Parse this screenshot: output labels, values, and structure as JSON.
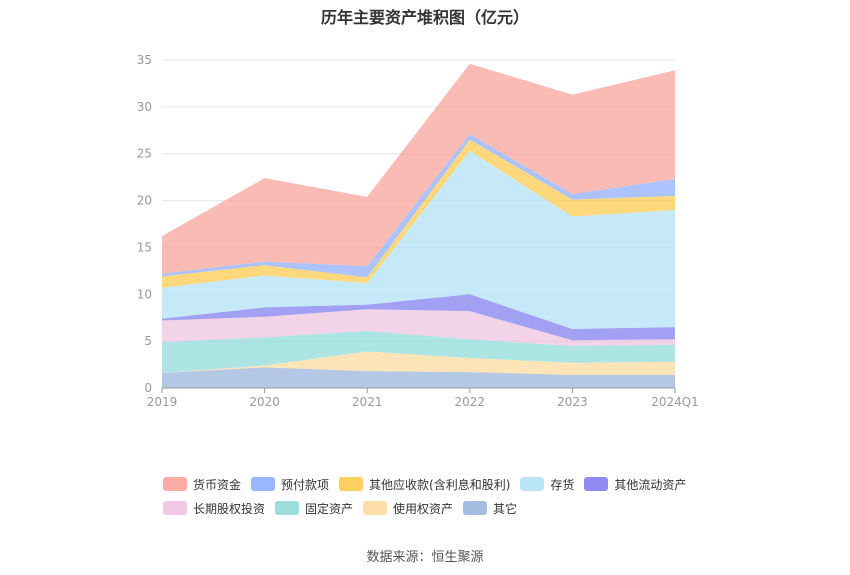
{
  "chart_data": {
    "type": "area",
    "stacked": true,
    "title": "历年主要资产堆积图（亿元）",
    "x": [
      "2019",
      "2020",
      "2021",
      "2022",
      "2023",
      "2024Q1"
    ],
    "y_ticks": [
      "0",
      "5",
      "10",
      "15",
      "20",
      "25",
      "30",
      "35"
    ],
    "ylim": [
      0,
      35
    ],
    "grid": true,
    "legend_position": "bottom",
    "series": [
      {
        "name": "其它",
        "color": "#94b0dc",
        "values": [
          1.6,
          2.2,
          1.8,
          1.7,
          1.4,
          1.4
        ]
      },
      {
        "name": "使用权资产",
        "color": "#ffd99a",
        "values": [
          0.0,
          0.2,
          2.1,
          1.5,
          1.3,
          1.4
        ]
      },
      {
        "name": "固定资产",
        "color": "#8ad8d8",
        "values": [
          3.3,
          3.0,
          2.2,
          2.0,
          1.8,
          1.8
        ]
      },
      {
        "name": "长期股权投资",
        "color": "#eec0dd",
        "values": [
          2.3,
          2.2,
          2.3,
          3.0,
          0.6,
          0.6
        ]
      },
      {
        "name": "其他流动资产",
        "color": "#7b77ee",
        "values": [
          0.2,
          1.0,
          0.5,
          1.8,
          1.2,
          1.3
        ]
      },
      {
        "name": "存货",
        "color": "#aee0f8",
        "values": [
          3.3,
          3.4,
          2.3,
          15.3,
          12.0,
          12.5
        ]
      },
      {
        "name": "其他应收款(含利息和股利)",
        "color": "#ffc845",
        "values": [
          1.2,
          1.1,
          0.6,
          1.2,
          1.8,
          1.5
        ]
      },
      {
        "name": "预付款项",
        "color": "#8aaaff",
        "values": [
          0.3,
          0.4,
          1.2,
          0.6,
          0.6,
          1.8
        ]
      },
      {
        "name": "货币资金",
        "color": "#fa9e96",
        "values": [
          4.0,
          8.9,
          7.4,
          7.5,
          10.6,
          11.6
        ]
      }
    ],
    "legend_rows": [
      [
        "货币资金",
        "预付款项",
        "其他应收款(含利息和股利)",
        "存货",
        "其他流动资产"
      ],
      [
        "长期股权投资",
        "固定资产",
        "使用权资产",
        "其它"
      ]
    ]
  },
  "source_text": "数据来源：恒生聚源"
}
